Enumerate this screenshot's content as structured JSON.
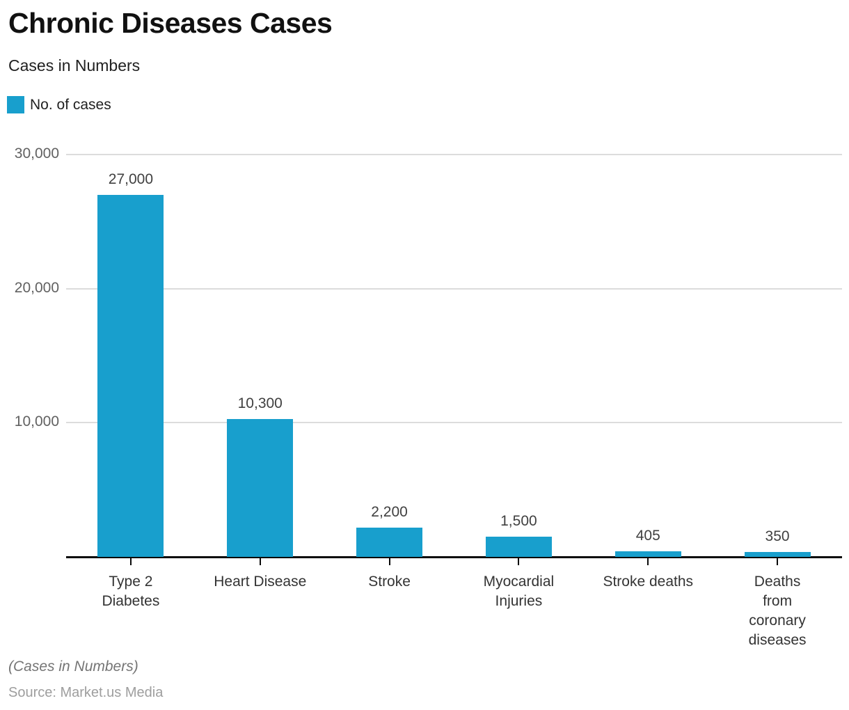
{
  "header": {
    "title": "Chronic Diseases Cases",
    "subtitle": "Cases in Numbers"
  },
  "footer": {
    "note": "(Cases in Numbers)",
    "source": "Source: Market.us Media"
  },
  "chart_data": {
    "type": "bar",
    "title": "Chronic Diseases Cases",
    "subtitle": "Cases in Numbers",
    "legend": [
      "No. of cases"
    ],
    "legend_position": "top-left",
    "categories": [
      "Type 2 Diabetes",
      "Heart Disease",
      "Stroke",
      "Myocardial Injuries",
      "Stroke deaths",
      "Deaths from coronary diseases"
    ],
    "category_lines": [
      [
        "Type 2",
        "Diabetes"
      ],
      [
        "Heart Disease"
      ],
      [
        "Stroke"
      ],
      [
        "Myocardial",
        "Injuries"
      ],
      [
        "Stroke deaths"
      ],
      [
        "Deaths from",
        "coronary",
        "diseases"
      ]
    ],
    "values": [
      27000,
      10300,
      2200,
      1500,
      405,
      350
    ],
    "value_labels": [
      "27,000",
      "10,300",
      "2,200",
      "1,500",
      "405",
      "350"
    ],
    "xlabel": "",
    "ylabel": "",
    "ylim": [
      0,
      30000
    ],
    "yticks": [
      {
        "value": 10000,
        "label": "10,000"
      },
      {
        "value": 20000,
        "label": "20,000"
      },
      {
        "value": 30000,
        "label": "30,000"
      }
    ],
    "grid": true,
    "bar_color": "#189FCD",
    "colors": {
      "grid": "#DCDCDC",
      "axis": "#0A0A0A",
      "ytick_text": "#616161",
      "value_text": "#404040",
      "category_text": "#333333",
      "title_text": "#111111",
      "subtitle_text": "#212121",
      "note_text": "#757575",
      "source_text": "#9E9E9E"
    }
  }
}
